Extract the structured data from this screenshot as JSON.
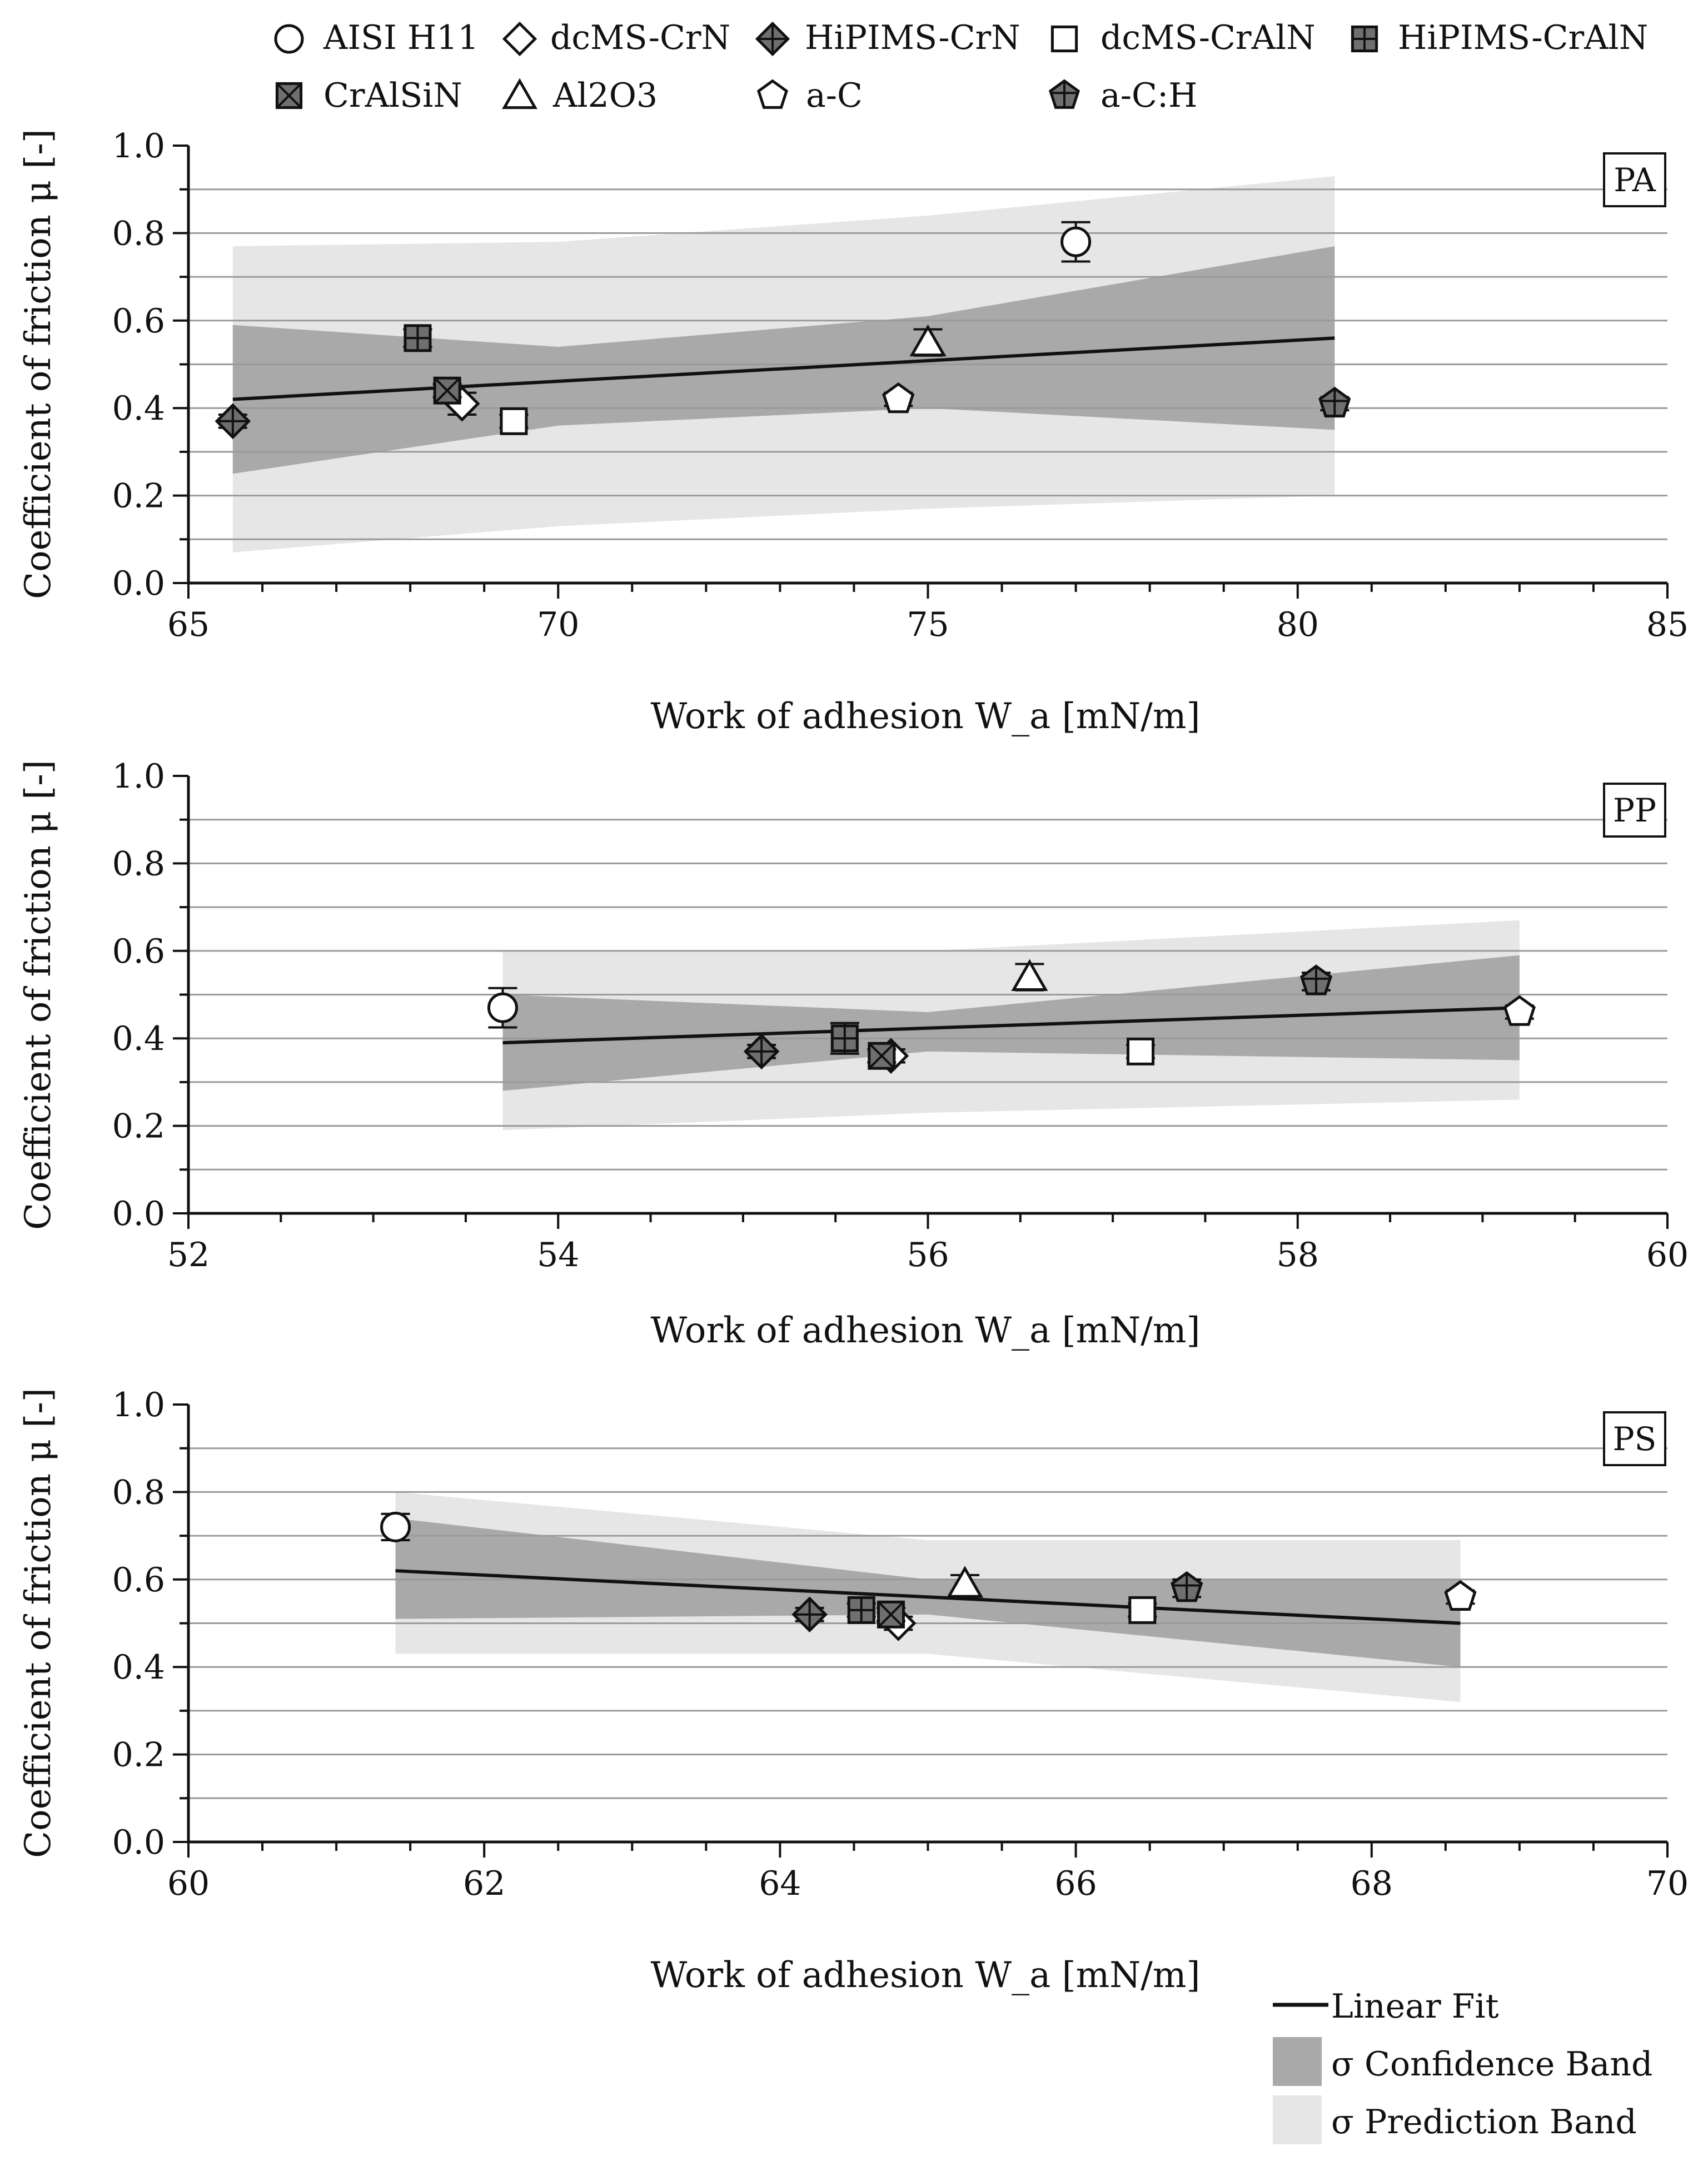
{
  "colors": {
    "prediction_band": "#e6e6e6",
    "confidence_band": "#a9a9a9",
    "grid": "#9a9a9a",
    "axis": "#111111",
    "fit_line": "#111111",
    "marker_fill": "#ffffff",
    "filled_marker_fill": "#6f6f6f"
  },
  "legend": {
    "materials": [
      {
        "label": "AISI H11",
        "marker": "circle-icon"
      },
      {
        "label": "dcMS-CrN",
        "marker": "diamond-icon"
      },
      {
        "label": "HiPIMS-CrN",
        "marker": "crossed-diamond-icon"
      },
      {
        "label": "dcMS-CrAlN",
        "marker": "square-icon"
      },
      {
        "label": "HiPIMS-CrAlN",
        "marker": "plus-square-icon"
      },
      {
        "label": "CrAlSiN",
        "marker": "x-square-icon"
      },
      {
        "label": "Al2O3",
        "marker": "triangle-icon"
      },
      {
        "label": "a-C",
        "marker": "pentagon-icon"
      },
      {
        "label": "a-C:H",
        "marker": "crossed-pentagon-icon"
      }
    ],
    "fit": {
      "linear_fit": "Linear Fit",
      "confidence_band": "σ Confidence Band",
      "prediction_band": "σ Prediction Band"
    }
  },
  "chart_data": [
    {
      "type": "scatter",
      "panel": "PA",
      "xlabel": "Work of adhesion W_a [mN/m]",
      "ylabel": "Coefficient of friction μ [-]",
      "xlim": [
        65,
        85
      ],
      "ylim": [
        0.0,
        1.0
      ],
      "xticks": [
        65,
        70,
        75,
        80,
        85
      ],
      "yticks": [
        0.0,
        0.2,
        0.4,
        0.6,
        0.8,
        1.0
      ],
      "grid": true,
      "points": [
        {
          "material": "AISI H11",
          "x": 77.0,
          "y": 0.78,
          "err": 0.045
        },
        {
          "material": "dcMS-CrN",
          "x": 68.7,
          "y": 0.41,
          "err": 0.025
        },
        {
          "material": "HiPIMS-CrN",
          "x": 65.6,
          "y": 0.37,
          "err": 0.015
        },
        {
          "material": "dcMS-CrAlN",
          "x": 69.4,
          "y": 0.37,
          "err": 0.015
        },
        {
          "material": "HiPIMS-CrAlN",
          "x": 68.1,
          "y": 0.56,
          "err": 0.02
        },
        {
          "material": "CrAlSiN",
          "x": 68.5,
          "y": 0.44,
          "err": 0.015
        },
        {
          "material": "Al2O3",
          "x": 75.0,
          "y": 0.55,
          "err": 0.03
        },
        {
          "material": "a-C",
          "x": 74.6,
          "y": 0.42,
          "err": 0.015
        },
        {
          "material": "a-C:H",
          "x": 80.5,
          "y": 0.41,
          "err": 0.015
        }
      ],
      "fit": {
        "x": [
          65.6,
          80.5
        ],
        "y": [
          0.42,
          0.56
        ]
      },
      "confidence_band": {
        "x": [
          65.6,
          70.0,
          75.0,
          80.5
        ],
        "lower": [
          0.25,
          0.36,
          0.4,
          0.35
        ],
        "upper": [
          0.59,
          0.54,
          0.61,
          0.77
        ]
      },
      "prediction_band": {
        "x": [
          65.6,
          70.0,
          75.0,
          80.5
        ],
        "lower": [
          0.07,
          0.13,
          0.17,
          0.2
        ],
        "upper": [
          0.77,
          0.78,
          0.84,
          0.93
        ]
      }
    },
    {
      "type": "scatter",
      "panel": "PP",
      "xlabel": "Work of adhesion W_a [mN/m]",
      "ylabel": "Coefficient of friction μ [-]",
      "xlim": [
        52,
        60
      ],
      "ylim": [
        0.0,
        1.0
      ],
      "xticks": [
        52,
        54,
        56,
        58,
        60
      ],
      "yticks": [
        0.0,
        0.2,
        0.4,
        0.6,
        0.8,
        1.0
      ],
      "grid": true,
      "points": [
        {
          "material": "AISI H11",
          "x": 53.7,
          "y": 0.47,
          "err": 0.045
        },
        {
          "material": "dcMS-CrN",
          "x": 55.8,
          "y": 0.36,
          "err": 0.015
        },
        {
          "material": "HiPIMS-CrN",
          "x": 55.1,
          "y": 0.37,
          "err": 0.015
        },
        {
          "material": "dcMS-CrAlN",
          "x": 57.15,
          "y": 0.37,
          "err": 0.015
        },
        {
          "material": "HiPIMS-CrAlN",
          "x": 55.55,
          "y": 0.4,
          "err": 0.035
        },
        {
          "material": "CrAlSiN",
          "x": 55.75,
          "y": 0.36,
          "err": 0.015
        },
        {
          "material": "Al2O3",
          "x": 56.55,
          "y": 0.54,
          "err": 0.03
        },
        {
          "material": "a-C",
          "x": 59.2,
          "y": 0.46,
          "err": 0.015
        },
        {
          "material": "a-C:H",
          "x": 58.1,
          "y": 0.53,
          "err": 0.02
        }
      ],
      "fit": {
        "x": [
          53.7,
          59.2
        ],
        "y": [
          0.39,
          0.47
        ]
      },
      "confidence_band": {
        "x": [
          53.7,
          56.0,
          59.2
        ],
        "lower": [
          0.28,
          0.37,
          0.35
        ],
        "upper": [
          0.5,
          0.46,
          0.59
        ]
      },
      "prediction_band": {
        "x": [
          53.7,
          56.0,
          59.2
        ],
        "lower": [
          0.19,
          0.23,
          0.26
        ],
        "upper": [
          0.6,
          0.6,
          0.67
        ]
      }
    },
    {
      "type": "scatter",
      "panel": "PS",
      "xlabel": "Work of adhesion W_a [mN/m]",
      "ylabel": "Coefficient of friction μ [-]",
      "xlim": [
        60,
        70
      ],
      "ylim": [
        0.0,
        1.0
      ],
      "xticks": [
        60,
        62,
        64,
        66,
        68,
        70
      ],
      "yticks": [
        0.0,
        0.2,
        0.4,
        0.6,
        0.8,
        1.0
      ],
      "grid": true,
      "points": [
        {
          "material": "AISI H11",
          "x": 61.4,
          "y": 0.72,
          "err": 0.03
        },
        {
          "material": "dcMS-CrN",
          "x": 64.8,
          "y": 0.5,
          "err": 0.015
        },
        {
          "material": "HiPIMS-CrN",
          "x": 64.2,
          "y": 0.52,
          "err": 0.015
        },
        {
          "material": "dcMS-CrAlN",
          "x": 66.45,
          "y": 0.53,
          "err": 0.015
        },
        {
          "material": "HiPIMS-CrAlN",
          "x": 64.55,
          "y": 0.53,
          "err": 0.015
        },
        {
          "material": "CrAlSiN",
          "x": 64.75,
          "y": 0.52,
          "err": 0.015
        },
        {
          "material": "Al2O3",
          "x": 65.25,
          "y": 0.59,
          "err": 0.02
        },
        {
          "material": "a-C",
          "x": 68.6,
          "y": 0.56,
          "err": 0.015
        },
        {
          "material": "a-C:H",
          "x": 66.75,
          "y": 0.58,
          "err": 0.02
        }
      ],
      "fit": {
        "x": [
          61.4,
          68.6
        ],
        "y": [
          0.62,
          0.5
        ]
      },
      "confidence_band": {
        "x": [
          61.4,
          65.0,
          68.6
        ],
        "lower": [
          0.51,
          0.52,
          0.4
        ],
        "upper": [
          0.74,
          0.6,
          0.6
        ]
      },
      "prediction_band": {
        "x": [
          61.4,
          65.0,
          68.6
        ],
        "lower": [
          0.43,
          0.43,
          0.32
        ],
        "upper": [
          0.8,
          0.69,
          0.69
        ]
      }
    }
  ]
}
